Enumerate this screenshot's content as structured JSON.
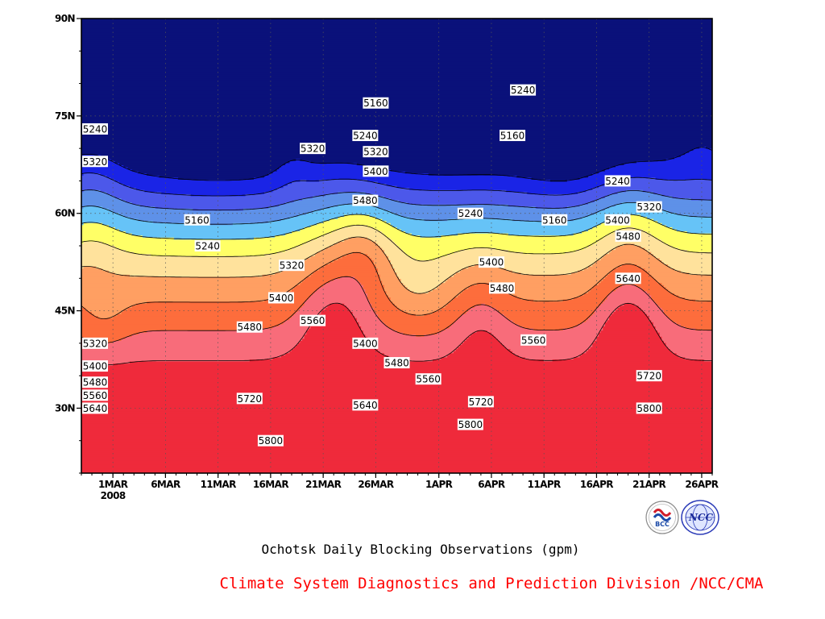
{
  "chart_data": {
    "type": "heatmap",
    "title": "Ochotsk Daily Blocking Observations (gpm)",
    "xlabel": "",
    "ylabel": "",
    "x_ticks": [
      "1MAR",
      "6MAR",
      "11MAR",
      "16MAR",
      "21MAR",
      "26MAR",
      "1APR",
      "6APR",
      "11APR",
      "16APR",
      "21APR",
      "26APR"
    ],
    "x_year_label": "2008",
    "x_range": [
      "2008-02-27",
      "2008-04-27"
    ],
    "y_ticks": [
      "30N",
      "45N",
      "60N",
      "75N",
      "90N"
    ],
    "y_tick_values": [
      30,
      45,
      60,
      75,
      90
    ],
    "ylim": [
      20,
      90
    ],
    "contour_levels": [
      5160,
      5240,
      5320,
      5400,
      5480,
      5560,
      5640,
      5720,
      5800,
      5880
    ],
    "level_colors": [
      "#0a117a",
      "#1a24e6",
      "#4c58ea",
      "#5e91e8",
      "#66c3f7",
      "#ffff66",
      "#ffe29c",
      "#ff9f62",
      "#fd6d3c",
      "#f86c7a",
      "#ef2a3b"
    ],
    "contour_labels": [
      {
        "value": "5240",
        "x": "2008-02-27",
        "y": 73
      },
      {
        "value": "5320",
        "x": "2008-02-28",
        "y": 68
      },
      {
        "value": "5160",
        "x": "2008-03-09",
        "y": 59
      },
      {
        "value": "5240",
        "x": "2008-03-10",
        "y": 55
      },
      {
        "value": "5320",
        "x": "2008-03-18",
        "y": 52
      },
      {
        "value": "5400",
        "x": "2008-03-17",
        "y": 47
      },
      {
        "value": "5480",
        "x": "2008-03-14",
        "y": 42.5
      },
      {
        "value": "5560",
        "x": "2008-03-20",
        "y": 43.5
      },
      {
        "value": "5320",
        "x": "2008-03-20",
        "y": 70
      },
      {
        "value": "5160",
        "x": "2008-03-26",
        "y": 77
      },
      {
        "value": "5240",
        "x": "2008-03-25",
        "y": 72
      },
      {
        "value": "5320",
        "x": "2008-03-26",
        "y": 69.5
      },
      {
        "value": "5400",
        "x": "2008-03-26",
        "y": 66.5
      },
      {
        "value": "5480",
        "x": "2008-03-25",
        "y": 62
      },
      {
        "value": "5400",
        "x": "2008-03-25",
        "y": 40
      },
      {
        "value": "5480",
        "x": "2008-03-28",
        "y": 37
      },
      {
        "value": "5560",
        "x": "2008-03-31",
        "y": 34.5
      },
      {
        "value": "5640",
        "x": "2008-03-25",
        "y": 30.5
      },
      {
        "value": "5240",
        "x": "2008-04-04",
        "y": 60
      },
      {
        "value": "5400",
        "x": "2008-04-06",
        "y": 52.5
      },
      {
        "value": "5480",
        "x": "2008-04-07",
        "y": 48.5
      },
      {
        "value": "5720",
        "x": "2008-04-05",
        "y": 31
      },
      {
        "value": "5800",
        "x": "2008-04-04",
        "y": 27.5
      },
      {
        "value": "5240",
        "x": "2008-04-09",
        "y": 79
      },
      {
        "value": "5160",
        "x": "2008-04-08",
        "y": 72
      },
      {
        "value": "5160",
        "x": "2008-04-12",
        "y": 59
      },
      {
        "value": "5560",
        "x": "2008-04-10",
        "y": 40.5
      },
      {
        "value": "5240",
        "x": "2008-04-18",
        "y": 65
      },
      {
        "value": "5320",
        "x": "2008-04-21",
        "y": 61
      },
      {
        "value": "5400",
        "x": "2008-04-18",
        "y": 59
      },
      {
        "value": "5480",
        "x": "2008-04-19",
        "y": 56.5
      },
      {
        "value": "5640",
        "x": "2008-04-19",
        "y": 50
      },
      {
        "value": "5720",
        "x": "2008-04-21",
        "y": 35
      },
      {
        "value": "5800",
        "x": "2008-04-21",
        "y": 30
      },
      {
        "value": "5320",
        "x": "2008-02-27",
        "y": 40
      },
      {
        "value": "5400",
        "x": "2008-02-28",
        "y": 36.5
      },
      {
        "value": "5480",
        "x": "2008-02-28",
        "y": 34
      },
      {
        "value": "5560",
        "x": "2008-02-28",
        "y": 32
      },
      {
        "value": "5640",
        "x": "2008-02-28",
        "y": 30
      },
      {
        "value": "5720",
        "x": "2008-03-14",
        "y": 31.5
      },
      {
        "value": "5800",
        "x": "2008-03-16",
        "y": 25
      }
    ],
    "grid": true
  },
  "footer": {
    "credit": "Climate System Diagnostics and Prediction Division /NCC/CMA",
    "logos": [
      "bcc-logo-icon",
      "ncc-logo-icon"
    ],
    "logo_text": [
      "BCC",
      "NCC"
    ]
  }
}
